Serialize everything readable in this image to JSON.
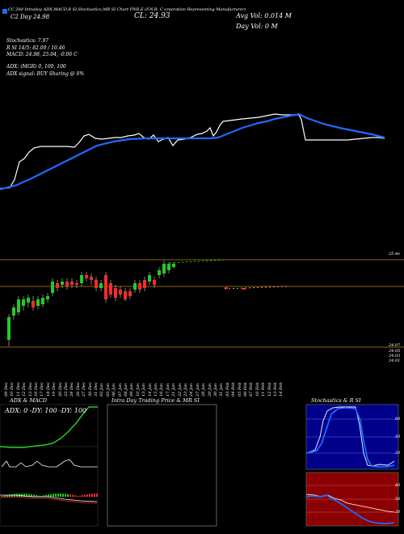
{
  "header": {
    "line1": "CC 20d Intraday ADX,MACD,R   SI,Stochastics,MR   SI Chart FNB,E   (F.N.B. C   orporation Representing Manufacturer)",
    "price_line": "C2  Day  24.98",
    "cl_line": "CL: 24.93",
    "avg_vol": "Avg Vol: 0.014  M",
    "day_vol": "Day Vol: 0   M",
    "stoch": "Stochastics: 7.97",
    "r_line": "R                       SI 14/5: 82.09 / 10.46",
    "macd": "MACD: 24.98, 25.04, -0.06  C",
    "adx": "ADX:                    (MGR) 0,  100,  100",
    "adx_signal": "ADX  signal:                     BUY Sharing @ 0%"
  },
  "price_axis": {
    "upper": "25.4e",
    "l1": "24.07",
    "l2": "24.05",
    "l3": "24.03",
    "l4": "24.01"
  },
  "dates": [
    "09 Dec",
    "10 Dec",
    "11 Dec",
    "12 Dec",
    "13 Dec",
    "16 Dec",
    "17 Dec",
    "18 Dec",
    "19 Dec",
    "20 Dec",
    "23 Dec",
    "24 Dec",
    "26 Dec",
    "27 Dec",
    "30 Dec",
    "31 Dec",
    "02 Jan",
    "03 Jan",
    "06 Jan",
    "07 Jan",
    "08 Jan",
    "09 Jan",
    "10 Jan",
    "13 Jan",
    "14 Jan",
    "15 Jan",
    "16 Jan",
    "17 Jan",
    "21 Jan",
    "22 Jan",
    "23 Jan",
    "24 Jan",
    "27 Jan",
    "28 Jan",
    "29 Jan",
    "30 Jan",
    "31 Jan",
    "03 Feb",
    "04 Feb",
    "05 Feb",
    "06 Feb",
    "07 Feb",
    "10 Feb",
    "11 Feb",
    "12 Feb",
    "13 Feb",
    "14 Feb"
  ],
  "panels": {
    "adx_title": "ADX  & MACD",
    "adx_values": "ADX: 0    -DY: 100    -DY: 100",
    "intraday_title": "Intra  Day Trading Price  & MR                  SI",
    "stoch_title": "Stochastics & R          SI",
    "stoch_ticks": [
      "80",
      "50",
      "20"
    ],
    "rsi_ticks": [
      "80",
      "50",
      "20"
    ]
  },
  "colors": {
    "blue": "#1e6bff",
    "green": "#22cc22",
    "red": "#ff2a2a",
    "darkred": "#8b0000",
    "orange": "#b8860b"
  }
}
